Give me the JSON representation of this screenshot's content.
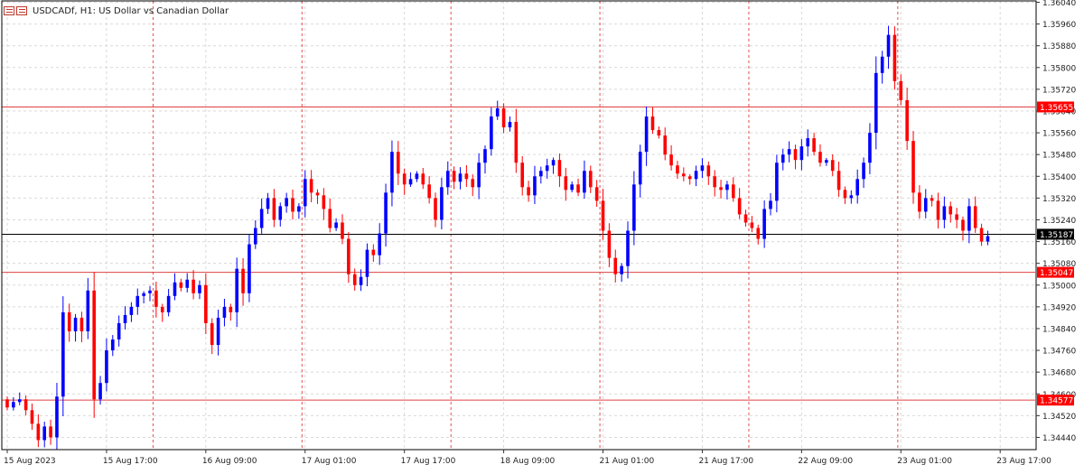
{
  "header": {
    "icon": "chart-window-icon",
    "title": "USDCADf, H1:  US Dollar vs Canadian Dollar"
  },
  "colors": {
    "bull": "#0000ff",
    "bear": "#ff0000",
    "grid": "#d9d9d9",
    "vline": "#e05050",
    "hline": "#e04040",
    "current": "#000000",
    "label_bg_red": "#ff0000",
    "label_bg_black": "#000000",
    "axis_text": "#222222"
  },
  "chart_data": {
    "type": "candlestick",
    "symbol": "USDCADf",
    "timeframe": "H1",
    "ylim": [
      1.34395,
      1.36045
    ],
    "price_ticks": [
      "1.36040",
      "1.35960",
      "1.35880",
      "1.35800",
      "1.35720",
      "1.35640",
      "1.35560",
      "1.35480",
      "1.35400",
      "1.35320",
      "1.35240",
      "1.35160",
      "1.35080",
      "1.35000",
      "1.34920",
      "1.34840",
      "1.34760",
      "1.34680",
      "1.34600",
      "1.34520",
      "1.34440"
    ],
    "time_labels": [
      {
        "bar": 0,
        "label": "15 Aug 2023"
      },
      {
        "bar": 16,
        "label": "15 Aug 17:00"
      },
      {
        "bar": 32,
        "label": "16 Aug 09:00"
      },
      {
        "bar": 48,
        "label": "17 Aug 01:00"
      },
      {
        "bar": 64,
        "label": "17 Aug 17:00"
      },
      {
        "bar": 80,
        "label": "18 Aug 09:00"
      },
      {
        "bar": 96,
        "label": "21 Aug 01:00"
      },
      {
        "bar": 112,
        "label": "21 Aug 17:00"
      },
      {
        "bar": 128,
        "label": "22 Aug 09:00"
      },
      {
        "bar": 144,
        "label": "23 Aug 01:00"
      },
      {
        "bar": 160,
        "label": "23 Aug 17:00"
      }
    ],
    "day_separators": [
      24,
      48,
      72,
      96,
      120,
      144,
      168
    ],
    "horizontal_lines": [
      {
        "price": 1.35655,
        "label": "1.35655",
        "style": "red"
      },
      {
        "price": 1.35187,
        "label": "1.35187",
        "style": "current"
      },
      {
        "price": 1.35047,
        "label": "1.35047",
        "style": "red"
      },
      {
        "price": 1.34577,
        "label": "1.34577",
        "style": "red"
      }
    ],
    "closes": [
      1.3455,
      1.3457,
      1.3458,
      1.3454,
      1.3449,
      1.3443,
      1.3448,
      1.3444,
      1.3459,
      1.349,
      1.3483,
      1.3488,
      1.3483,
      1.3498,
      1.3458,
      1.3464,
      1.3476,
      1.348,
      1.3486,
      1.3489,
      1.3492,
      1.3496,
      1.3497,
      1.3498,
      1.3492,
      1.349,
      1.3496,
      1.3501,
      1.3499,
      1.3502,
      1.3497,
      1.35,
      1.3486,
      1.3478,
      1.3488,
      1.3492,
      1.349,
      1.3506,
      1.3497,
      1.3515,
      1.3521,
      1.3528,
      1.3532,
      1.3524,
      1.3529,
      1.3532,
      1.3527,
      1.3529,
      1.3539,
      1.3534,
      1.3533,
      1.3528,
      1.3521,
      1.3523,
      1.3517,
      1.3504,
      1.35,
      1.3503,
      1.3513,
      1.3511,
      1.3519,
      1.3534,
      1.3549,
      1.3541,
      1.3537,
      1.3539,
      1.3541,
      1.3537,
      1.3532,
      1.3524,
      1.3536,
      1.3542,
      1.3538,
      1.3541,
      1.3539,
      1.3536,
      1.3545,
      1.355,
      1.3562,
      1.3565,
      1.3558,
      1.356,
      1.3545,
      1.3536,
      1.3533,
      1.354,
      1.3542,
      1.3544,
      1.3546,
      1.354,
      1.3535,
      1.3537,
      1.3534,
      1.3542,
      1.3536,
      1.3531,
      1.352,
      1.351,
      1.3504,
      1.3507,
      1.352,
      1.3537,
      1.3549,
      1.3562,
      1.3557,
      1.3555,
      1.3548,
      1.3544,
      1.3541,
      1.354,
      1.3539,
      1.3542,
      1.3544,
      1.354,
      1.3536,
      1.3535,
      1.3537,
      1.3532,
      1.3526,
      1.3523,
      1.3521,
      1.3517,
      1.3528,
      1.3531,
      1.3545,
      1.3548,
      1.355,
      1.3546,
      1.3551,
      1.3554,
      1.3549,
      1.3545,
      1.3546,
      1.3542,
      1.3535,
      1.3532,
      1.3533,
      1.3539,
      1.3545,
      1.3556,
      1.3578,
      1.3584,
      1.3592,
      1.3575,
      1.3568,
      1.3553,
      1.3534,
      1.3527,
      1.3532,
      1.3531,
      1.3524,
      1.3529,
      1.3526,
      1.3524,
      1.352,
      1.3529,
      1.3521,
      1.3516,
      1.3518
    ]
  }
}
